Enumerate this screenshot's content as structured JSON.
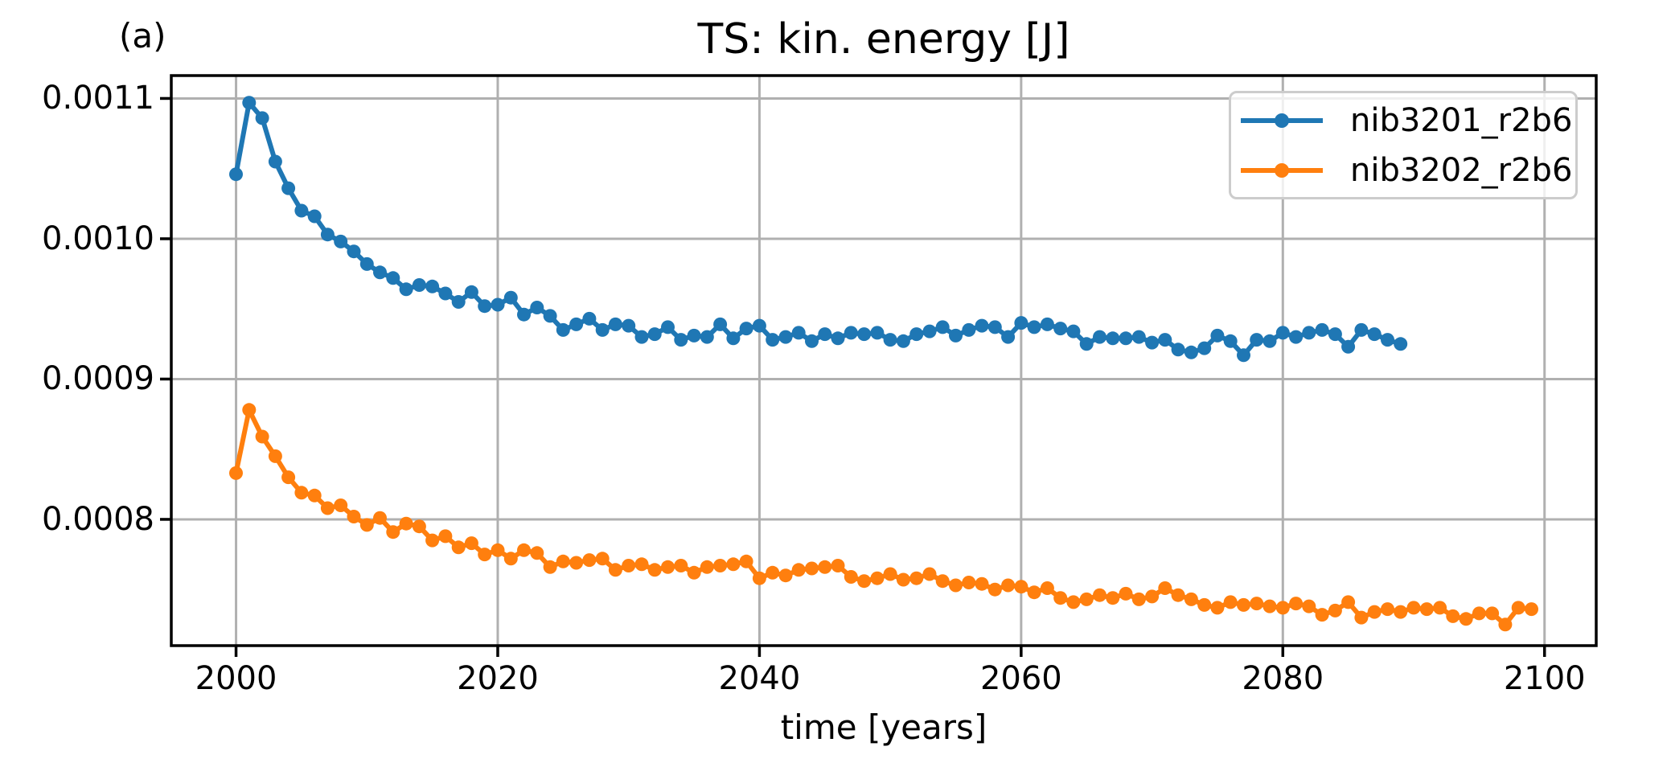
{
  "chart_data": {
    "type": "line",
    "title": "TS: kin. energy [J]",
    "panel_label": "(a)",
    "xlabel": "time [years]",
    "ylabel": "",
    "grid": true,
    "legend_position": "upper right",
    "colors": {
      "axis": "#000000",
      "grid": "#b0b0b0",
      "background": "#ffffff",
      "series_blue": "#1f77b4",
      "series_orange": "#ff7f0e"
    },
    "xlim": [
      1995.05,
      2103.95
    ],
    "ylim": [
      0.00071,
      0.0011163
    ],
    "xticks": [
      {
        "value": 2000,
        "label": "2000"
      },
      {
        "value": 2020,
        "label": "2020"
      },
      {
        "value": 2040,
        "label": "2040"
      },
      {
        "value": 2060,
        "label": "2060"
      },
      {
        "value": 2080,
        "label": "2080"
      },
      {
        "value": 2100,
        "label": "2100"
      }
    ],
    "yticks": [
      {
        "value": 0.0008,
        "label": "0.0008"
      },
      {
        "value": 0.0009,
        "label": "0.0009"
      },
      {
        "value": 0.001,
        "label": "0.0010"
      },
      {
        "value": 0.0011,
        "label": "0.0011"
      }
    ],
    "series": [
      {
        "name": "nib3201_r2b6",
        "color": "#1f77b4",
        "marker": "circle",
        "x_start": 2000,
        "x_step": 1,
        "x_end": 2089,
        "values": [
          0.001046,
          0.001097,
          0.001086,
          0.001055,
          0.001036,
          0.00102,
          0.001016,
          0.001003,
          0.000998,
          0.000991,
          0.000982,
          0.000976,
          0.000972,
          0.000964,
          0.000967,
          0.000966,
          0.000961,
          0.000955,
          0.000962,
          0.000952,
          0.000953,
          0.000958,
          0.000946,
          0.000951,
          0.000945,
          0.000935,
          0.000939,
          0.000943,
          0.000935,
          0.000939,
          0.000938,
          0.00093,
          0.000932,
          0.000937,
          0.000928,
          0.000931,
          0.00093,
          0.000939,
          0.000929,
          0.000936,
          0.000938,
          0.000928,
          0.00093,
          0.000933,
          0.000927,
          0.000932,
          0.000929,
          0.000933,
          0.000932,
          0.000933,
          0.000928,
          0.000927,
          0.000932,
          0.000934,
          0.000937,
          0.000931,
          0.000935,
          0.000938,
          0.000937,
          0.00093,
          0.00094,
          0.000937,
          0.000939,
          0.000936,
          0.000934,
          0.000925,
          0.00093,
          0.000929,
          0.000929,
          0.00093,
          0.000926,
          0.000928,
          0.000921,
          0.000919,
          0.000922,
          0.000931,
          0.000927,
          0.000917,
          0.000928,
          0.000927,
          0.000933,
          0.00093,
          0.000933,
          0.000935,
          0.000932,
          0.000923,
          0.000935,
          0.000932,
          0.000928,
          0.000925
        ]
      },
      {
        "name": "nib3202_r2b6",
        "color": "#ff7f0e",
        "marker": "circle",
        "x_start": 2000,
        "x_step": 1,
        "x_end": 2099,
        "values": [
          0.000833,
          0.000878,
          0.000859,
          0.000845,
          0.00083,
          0.000819,
          0.000817,
          0.000808,
          0.00081,
          0.000802,
          0.000796,
          0.000801,
          0.000791,
          0.000797,
          0.000795,
          0.000785,
          0.000788,
          0.00078,
          0.000783,
          0.000775,
          0.000778,
          0.000772,
          0.000778,
          0.000776,
          0.000766,
          0.00077,
          0.000769,
          0.000771,
          0.000772,
          0.000764,
          0.000767,
          0.000768,
          0.000764,
          0.000766,
          0.000767,
          0.000762,
          0.000766,
          0.000767,
          0.000768,
          0.00077,
          0.000758,
          0.000762,
          0.00076,
          0.000764,
          0.000765,
          0.000766,
          0.000767,
          0.000759,
          0.000756,
          0.000758,
          0.000761,
          0.000757,
          0.000758,
          0.000761,
          0.000756,
          0.000753,
          0.000755,
          0.000754,
          0.00075,
          0.000753,
          0.000752,
          0.000748,
          0.000751,
          0.000744,
          0.000741,
          0.000743,
          0.000746,
          0.000744,
          0.000747,
          0.000743,
          0.000745,
          0.000751,
          0.000746,
          0.000743,
          0.000739,
          0.000737,
          0.000741,
          0.000739,
          0.00074,
          0.000738,
          0.000737,
          0.00074,
          0.000738,
          0.000732,
          0.000735,
          0.000741,
          0.00073,
          0.000734,
          0.000736,
          0.000734,
          0.000737,
          0.000736,
          0.000737,
          0.000731,
          0.000729,
          0.000733,
          0.000733,
          0.000725,
          0.000737,
          0.000736
        ]
      }
    ]
  }
}
